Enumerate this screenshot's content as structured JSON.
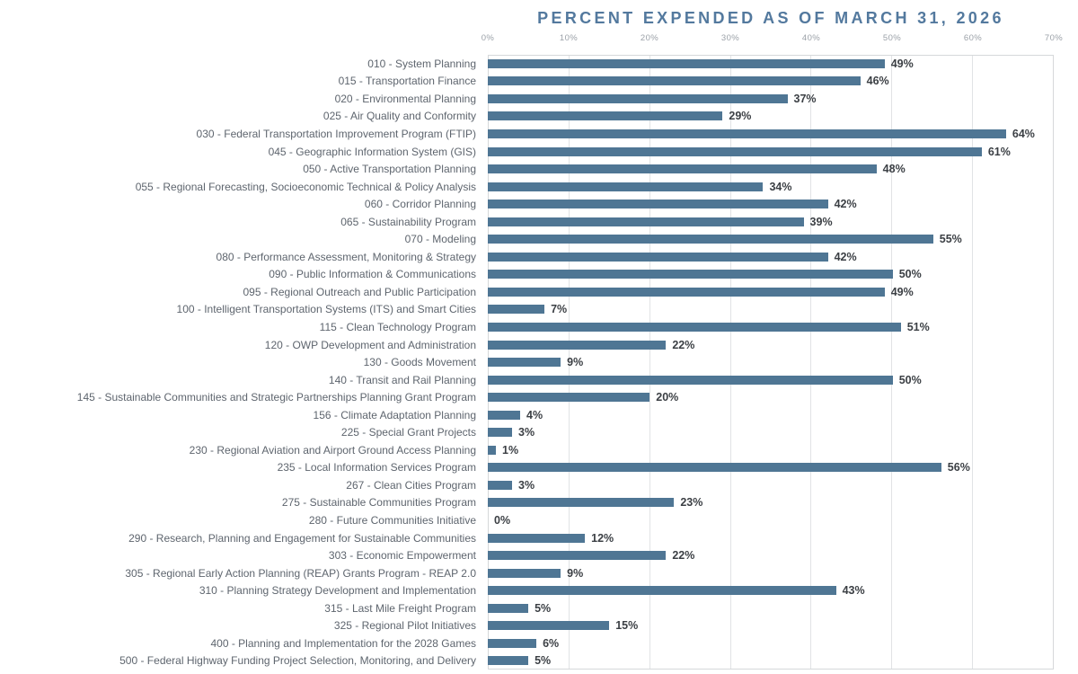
{
  "chart_data": {
    "type": "bar",
    "orientation": "horizontal",
    "title": "PERCENT EXPENDED AS OF MARCH 31, 2026",
    "xlabel": "",
    "ylabel": "",
    "xlim": [
      0,
      70
    ],
    "x_tick_labels": [
      "0%",
      "10%",
      "20%",
      "30%",
      "40%",
      "50%",
      "60%",
      "70%"
    ],
    "x_tick_values": [
      0,
      10,
      20,
      30,
      40,
      50,
      60,
      70
    ],
    "grid": "vertical-only",
    "legend_position": "none",
    "value_suffix": "%",
    "categories": [
      "010 - System Planning",
      "015 - Transportation Finance",
      "020 - Environmental Planning",
      "025 - Air Quality and Conformity",
      "030 - Federal Transportation Improvement Program (FTIP)",
      "045 - Geographic Information System (GIS)",
      "050 - Active Transportation Planning",
      "055 - Regional Forecasting, Socioeconomic Technical & Policy Analysis",
      "060 - Corridor Planning",
      "065 - Sustainability Program",
      "070 - Modeling",
      "080 - Performance Assessment, Monitoring & Strategy",
      "090 - Public Information & Communications",
      "095 - Regional Outreach and Public Participation",
      "100 - Intelligent Transportation Systems (ITS) and Smart Cities",
      "115 - Clean Technology Program",
      "120 - OWP Development and Administration",
      "130 - Goods Movement",
      "140 - Transit and Rail Planning",
      "145 - Sustainable Communities and Strategic Partnerships Planning Grant Program",
      "156 - Climate Adaptation Planning",
      "225 - Special Grant Projects",
      "230 - Regional Aviation and Airport Ground Access Planning",
      "235 - Local Information Services Program",
      "267 - Clean Cities Program",
      "275 - Sustainable Communities Program",
      "280 - Future Communities Initiative",
      "290 - Research, Planning and Engagement for Sustainable Communities",
      "303 - Economic Empowerment",
      "305 - Regional Early Action Planning (REAP) Grants Program - REAP 2.0",
      "310 - Planning Strategy Development and Implementation",
      "315 - Last Mile Freight Program",
      "325 - Regional Pilot Initiatives",
      "400 - Planning and Implementation for the 2028 Games",
      "500 - Federal Highway Funding Project Selection, Monitoring, and Delivery"
    ],
    "values": [
      49,
      46,
      37,
      29,
      64,
      61,
      48,
      34,
      42,
      39,
      55,
      42,
      50,
      49,
      7,
      51,
      22,
      9,
      50,
      20,
      4,
      3,
      1,
      56,
      3,
      23,
      0,
      12,
      22,
      9,
      43,
      5,
      15,
      6,
      5
    ]
  },
  "colors": {
    "bar": "#4f7694",
    "title": "#53799e",
    "category_label": "#5e656e",
    "value_label": "#3b3f44",
    "tick_label": "#9ba1a8",
    "gridline": "#e1e3e5",
    "plot_border": "#d6d8da",
    "background": "#ffffff"
  }
}
